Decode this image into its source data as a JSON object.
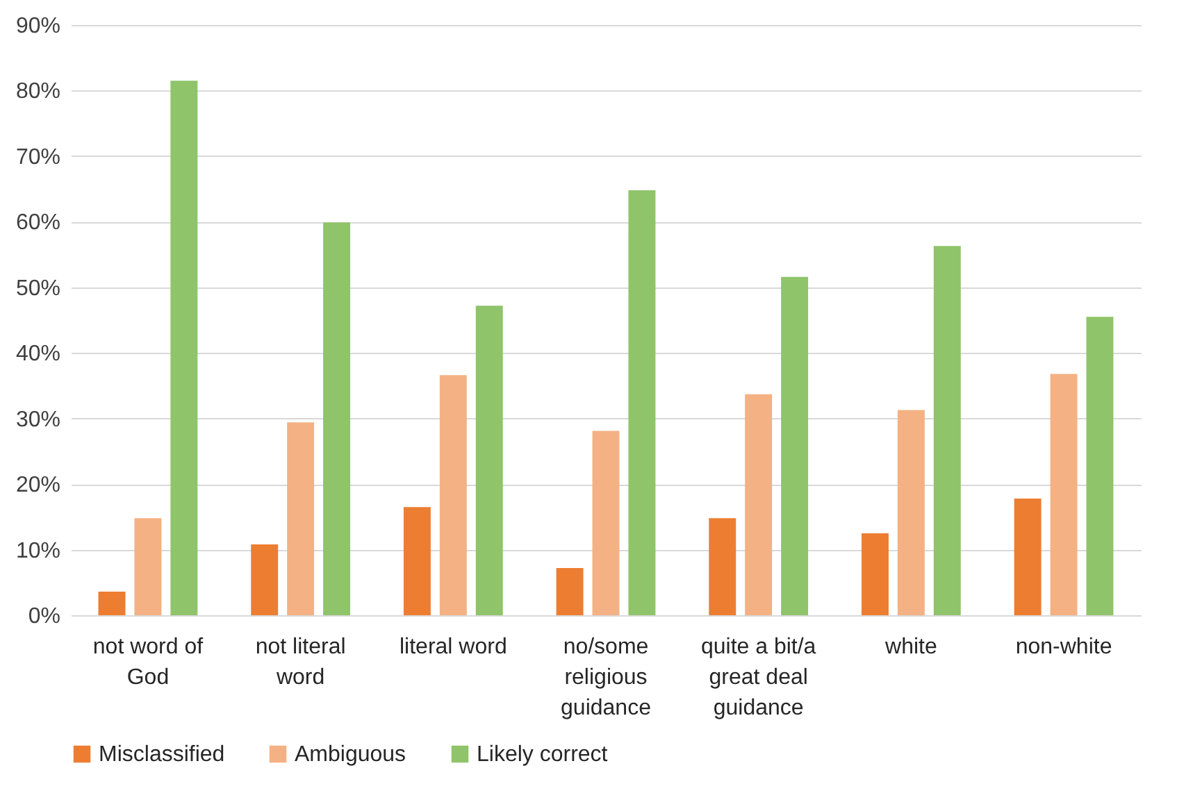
{
  "chart_data": {
    "type": "bar",
    "categories": [
      "not word of God",
      "not literal word",
      "literal word",
      "no/some religious guidance",
      "quite a bit/a great deal guidance",
      "white",
      "non-white"
    ],
    "series": [
      {
        "name": "Misclassified",
        "color": "#ed7d31",
        "values": [
          3.6,
          10.8,
          16.5,
          7.2,
          14.8,
          12.5,
          17.8
        ]
      },
      {
        "name": "Ambiguous",
        "color": "#f4b183",
        "values": [
          14.8,
          29.4,
          36.6,
          28.1,
          33.7,
          31.3,
          36.8
        ]
      },
      {
        "name": "Likely correct",
        "color": "#8fc46a",
        "values": [
          81.5,
          59.9,
          47.2,
          64.8,
          51.6,
          56.3,
          45.5
        ]
      }
    ],
    "ylim": [
      0,
      90
    ],
    "yticks": [
      {
        "value": 0,
        "label": "0%"
      },
      {
        "value": 10,
        "label": "10%"
      },
      {
        "value": 20,
        "label": "20%"
      },
      {
        "value": 30,
        "label": "30%"
      },
      {
        "value": 40,
        "label": "40%"
      },
      {
        "value": 50,
        "label": "50%"
      },
      {
        "value": 60,
        "label": "60%"
      },
      {
        "value": 70,
        "label": "70%"
      },
      {
        "value": 80,
        "label": "80%"
      },
      {
        "value": 90,
        "label": "90%"
      }
    ],
    "grid": "y",
    "legend": "bottom"
  }
}
